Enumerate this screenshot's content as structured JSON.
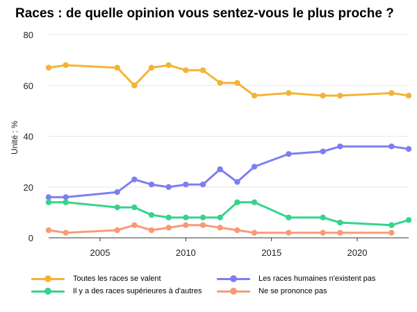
{
  "chart_data": {
    "type": "line",
    "title": "Races : de quelle opinion vous sentez-vous le plus proche ?",
    "ylabel": "Unité : %",
    "xlabel": "",
    "xlim": [
      2002,
      2023
    ],
    "ylim": [
      0,
      80
    ],
    "x_ticks": [
      2005,
      2010,
      2015,
      2020
    ],
    "y_ticks": [
      0,
      20,
      40,
      60,
      80
    ],
    "grid": true,
    "legend_position": "bottom",
    "series": [
      {
        "name": "Toutes les races se valent",
        "color": "#f5b335",
        "points": [
          [
            2002,
            67
          ],
          [
            2003,
            68
          ],
          [
            2006,
            67
          ],
          [
            2007,
            60
          ],
          [
            2008,
            67
          ],
          [
            2009,
            68
          ],
          [
            2010,
            66
          ],
          [
            2011,
            66
          ],
          [
            2012,
            61
          ],
          [
            2013,
            61
          ],
          [
            2014,
            56
          ],
          [
            2016,
            57
          ],
          [
            2018,
            56
          ],
          [
            2019,
            56
          ],
          [
            2022,
            57
          ],
          [
            2023,
            56
          ]
        ]
      },
      {
        "name": "Les races humaines n'existent pas",
        "color": "#7b7ff0",
        "points": [
          [
            2002,
            16
          ],
          [
            2003,
            16
          ],
          [
            2006,
            18
          ],
          [
            2007,
            23
          ],
          [
            2008,
            21
          ],
          [
            2009,
            20
          ],
          [
            2010,
            21
          ],
          [
            2011,
            21
          ],
          [
            2012,
            27
          ],
          [
            2013,
            22
          ],
          [
            2014,
            28
          ],
          [
            2016,
            33
          ],
          [
            2018,
            34
          ],
          [
            2019,
            36
          ],
          [
            2022,
            36
          ],
          [
            2023,
            35
          ]
        ]
      },
      {
        "name": "Il y a des races supérieures à d'autres",
        "color": "#35d48a",
        "points": [
          [
            2002,
            14
          ],
          [
            2003,
            14
          ],
          [
            2006,
            12
          ],
          [
            2007,
            12
          ],
          [
            2008,
            9
          ],
          [
            2009,
            8
          ],
          [
            2010,
            8
          ],
          [
            2011,
            8
          ],
          [
            2012,
            8
          ],
          [
            2013,
            14
          ],
          [
            2014,
            14
          ],
          [
            2016,
            8
          ],
          [
            2018,
            8
          ],
          [
            2019,
            6
          ],
          [
            2022,
            5
          ],
          [
            2023,
            7
          ]
        ]
      },
      {
        "name": "Ne se prononce pas",
        "color": "#f89a78",
        "points": [
          [
            2002,
            3
          ],
          [
            2003,
            2
          ],
          [
            2006,
            3
          ],
          [
            2007,
            5
          ],
          [
            2008,
            3
          ],
          [
            2009,
            4
          ],
          [
            2010,
            5
          ],
          [
            2011,
            5
          ],
          [
            2012,
            4
          ],
          [
            2013,
            3
          ],
          [
            2014,
            2
          ],
          [
            2016,
            2
          ],
          [
            2018,
            2
          ],
          [
            2019,
            2
          ],
          [
            2022,
            2
          ]
        ]
      }
    ]
  }
}
